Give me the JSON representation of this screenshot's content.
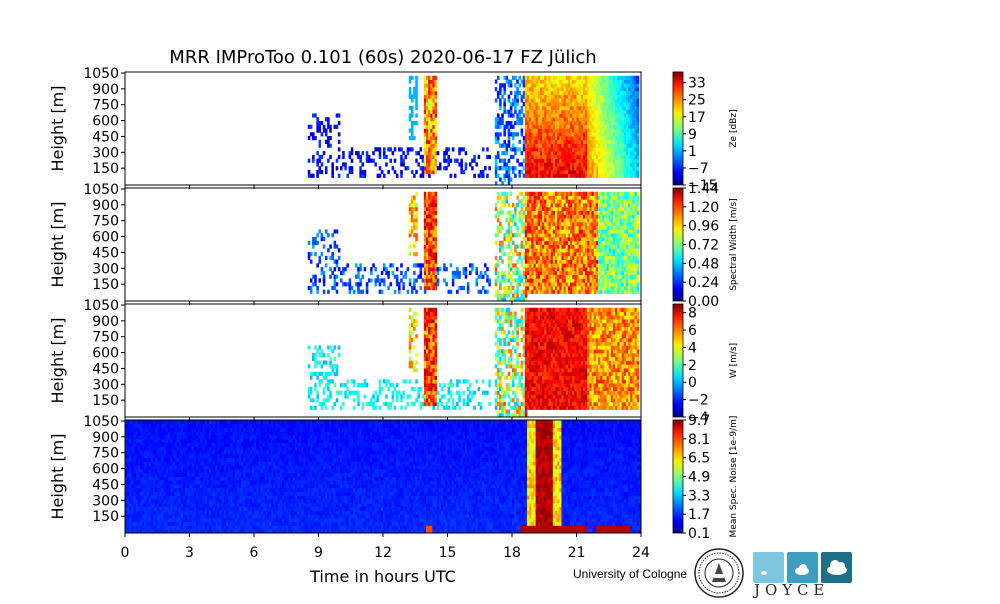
{
  "title": "MRR IMProToo 0.101 (60s) 2020-06-17 FZ Jülich",
  "xlabel": "Time in hours UTC",
  "ylabel": "Height [m]",
  "footer": {
    "university": "University of Cologne",
    "logo_text": "JOYCE"
  },
  "chart_data": [
    {
      "type": "heatmap",
      "quantity": "Ze",
      "colorbar_label": "Ze [dBz]",
      "colorbar_ticks": [
        "33",
        "25",
        "17",
        "9",
        "1",
        "−7",
        "−15"
      ],
      "colorbar_range": [
        -15,
        38
      ],
      "xlim": [
        0,
        24
      ],
      "ylim": [
        0,
        1050
      ],
      "x_ticks": [
        "0",
        "3",
        "6",
        "9",
        "12",
        "15",
        "18",
        "21",
        "24"
      ],
      "y_ticks": [
        "1050",
        "900",
        "750",
        "600",
        "450",
        "300",
        "150"
      ]
    },
    {
      "type": "heatmap",
      "quantity": "Spectral Width",
      "colorbar_label": "Spectral Width [m/s]",
      "colorbar_ticks": [
        "1.44",
        "1.20",
        "0.96",
        "0.72",
        "0.48",
        "0.24",
        "0.00"
      ],
      "colorbar_range": [
        0,
        1.44
      ],
      "xlim": [
        0,
        24
      ],
      "ylim": [
        0,
        1050
      ],
      "x_ticks": [
        "0",
        "3",
        "6",
        "9",
        "12",
        "15",
        "18",
        "21",
        "24"
      ],
      "y_ticks": [
        "1050",
        "900",
        "750",
        "600",
        "450",
        "300",
        "150"
      ]
    },
    {
      "type": "heatmap",
      "quantity": "W",
      "colorbar_label": "W [m/s]",
      "colorbar_ticks": [
        "8",
        "6",
        "4",
        "2",
        "0",
        "−2",
        "−4"
      ],
      "colorbar_range": [
        -4,
        9
      ],
      "xlim": [
        0,
        24
      ],
      "ylim": [
        0,
        1050
      ],
      "x_ticks": [
        "0",
        "3",
        "6",
        "9",
        "12",
        "15",
        "18",
        "21",
        "24"
      ],
      "y_ticks": [
        "1050",
        "900",
        "750",
        "600",
        "450",
        "300",
        "150"
      ]
    },
    {
      "type": "heatmap",
      "quantity": "Mean Spec. Noise",
      "colorbar_label": "Mean Spec. Noise [1e-9/m]",
      "colorbar_ticks": [
        "9.7",
        "8.1",
        "6.5",
        "4.9",
        "3.3",
        "1.7",
        "0.1"
      ],
      "colorbar_range": [
        0.1,
        9.7
      ],
      "xlim": [
        0,
        24
      ],
      "ylim": [
        0,
        1050
      ],
      "x_ticks": [
        "0",
        "3",
        "6",
        "9",
        "12",
        "15",
        "18",
        "21",
        "24"
      ],
      "y_ticks": [
        "1050",
        "900",
        "750",
        "600",
        "450",
        "300",
        "150"
      ]
    }
  ],
  "colors": {
    "joyce_light": "#7cc6e0",
    "joyce_mid": "#3d9ec0",
    "joyce_dark": "#1f6e88"
  }
}
